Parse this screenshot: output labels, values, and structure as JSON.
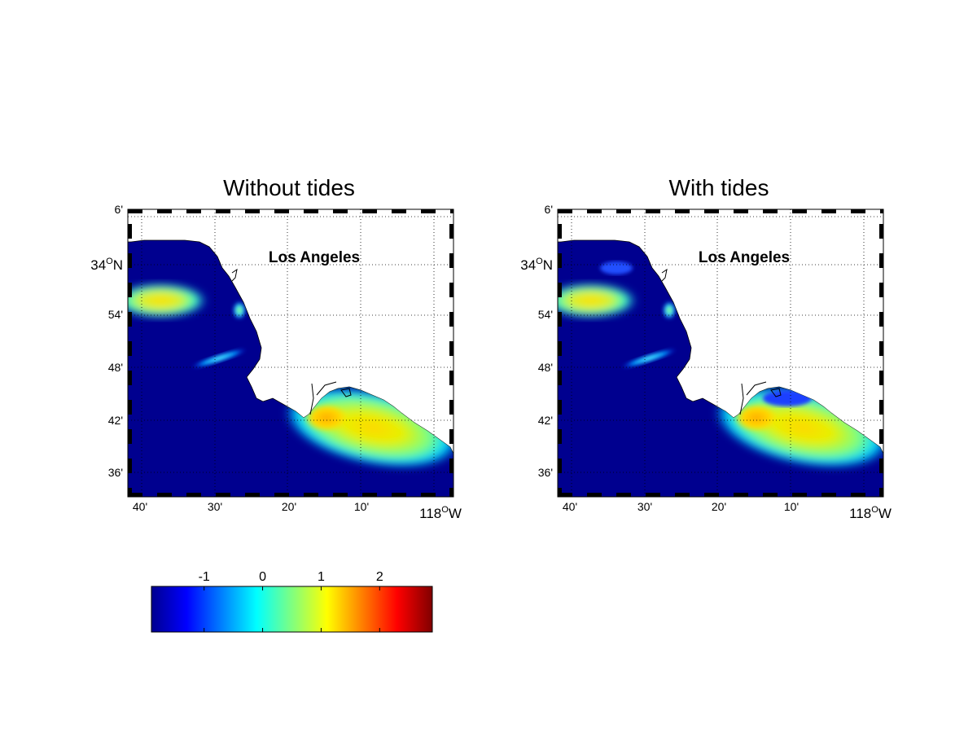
{
  "maps": [
    {
      "title": "Without tides",
      "place_label": "Los Angeles",
      "lat_labels": [
        {
          "deg": "",
          "min": "6'"
        },
        {
          "deg": "34",
          "min": "",
          "sup": "O",
          "hemi": "N"
        },
        {
          "deg": "",
          "min": "54'"
        },
        {
          "deg": "",
          "min": "48'"
        },
        {
          "deg": "",
          "min": "42'"
        },
        {
          "deg": "",
          "min": "36'"
        }
      ],
      "lon_labels": [
        {
          "text": "40'"
        },
        {
          "text": "30'"
        },
        {
          "text": "20'"
        },
        {
          "text": "10'"
        },
        {
          "deg": "118",
          "sup": "O",
          "hemi": "W"
        }
      ]
    },
    {
      "title": "With tides",
      "place_label": "Los Angeles",
      "lat_labels": [
        {
          "deg": "",
          "min": "6'"
        },
        {
          "deg": "34",
          "min": "",
          "sup": "O",
          "hemi": "N"
        },
        {
          "deg": "",
          "min": "54'"
        },
        {
          "deg": "",
          "min": "48'"
        },
        {
          "deg": "",
          "min": "42'"
        },
        {
          "deg": "",
          "min": "36'"
        }
      ],
      "lon_labels": [
        {
          "text": "40'"
        },
        {
          "text": "30'"
        },
        {
          "text": "20'"
        },
        {
          "text": "10'"
        },
        {
          "deg": "118",
          "sup": "O",
          "hemi": "W"
        }
      ]
    }
  ],
  "colorbar": {
    "tick_labels": [
      "-1",
      "0",
      "1",
      "2"
    ],
    "ticks": [
      -1,
      0,
      1,
      2
    ],
    "range": [
      -1.9,
      2.9
    ],
    "colormap": "jet"
  },
  "colors": {
    "ocean": "#00008f",
    "land": "#ffffff",
    "grid": "#000000"
  }
}
